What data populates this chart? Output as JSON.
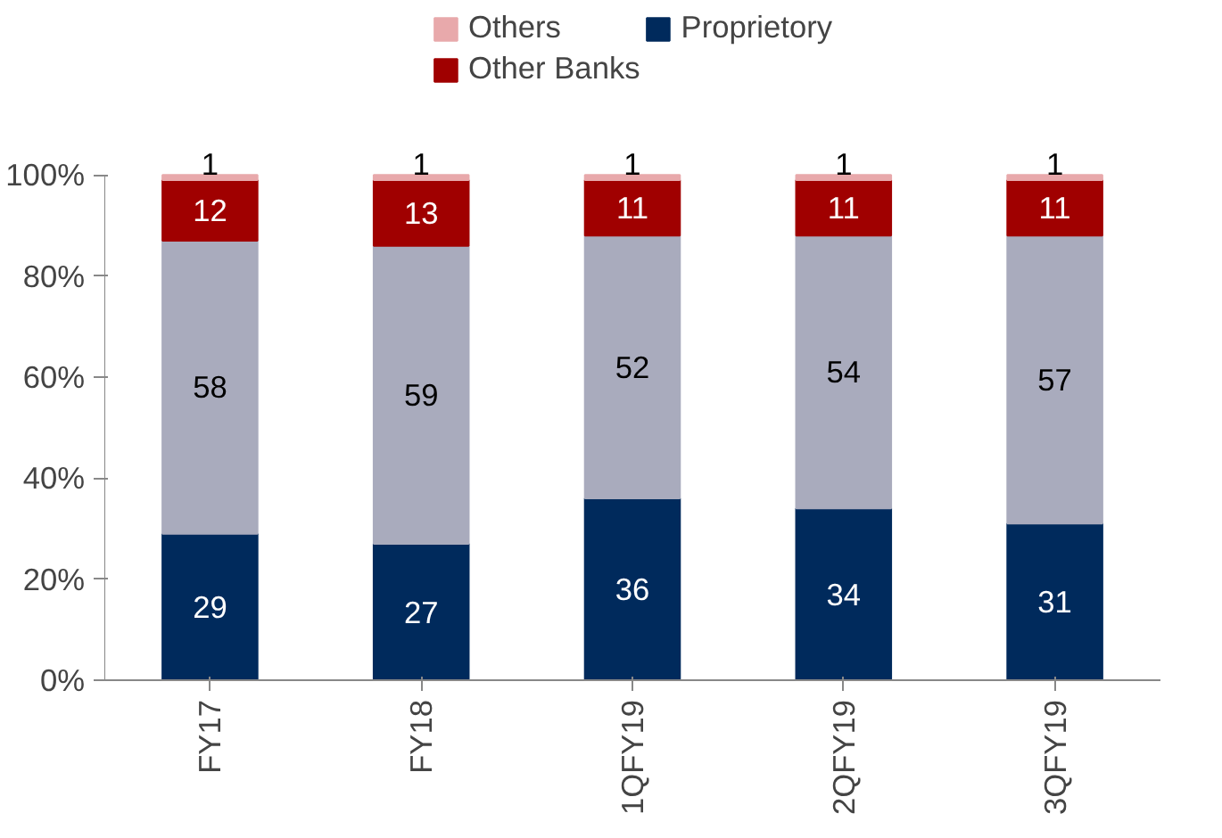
{
  "chart_data": {
    "type": "bar",
    "stacked": true,
    "categories": [
      "FY17",
      "FY18",
      "1QFY19",
      "2QFY19",
      "3QFY19"
    ],
    "series": [
      {
        "name": "Proprietory",
        "color": "#002a5c",
        "values": [
          29,
          27,
          36,
          34,
          31
        ]
      },
      {
        "color": "#a9abbd",
        "values": [
          58,
          59,
          52,
          54,
          57
        ]
      },
      {
        "name": "Other Banks",
        "color": "#a00000",
        "values": [
          12,
          13,
          11,
          11,
          11
        ]
      },
      {
        "name": "Others",
        "color": "#e8a9ab",
        "values": [
          1,
          1,
          1,
          1,
          1
        ]
      }
    ],
    "ylim": [
      0,
      100
    ],
    "yticks": [
      {
        "value": 0,
        "label": "0%"
      },
      {
        "value": 20,
        "label": "20%"
      },
      {
        "value": 40,
        "label": "40%"
      },
      {
        "value": 60,
        "label": "60%"
      },
      {
        "value": 80,
        "label": "80%"
      },
      {
        "value": 100,
        "label": "100%"
      }
    ],
    "data_labels": true,
    "grid": false,
    "legend": "top"
  }
}
